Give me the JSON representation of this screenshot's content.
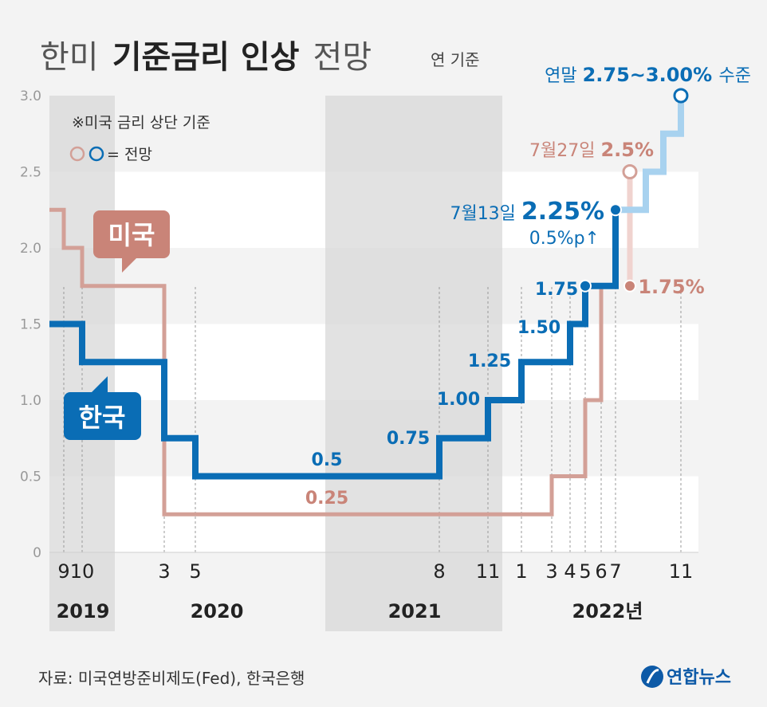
{
  "title": {
    "light1": "한미",
    "bold": "기준금리 인상",
    "light2": "전망"
  },
  "unit_note": "연 기준",
  "note": "※미국 금리 상단 기준",
  "legend_suffix": "= 전망",
  "source": "자료: 미국연방준비제도(Fed), 한국은행",
  "logo_text": "연합뉴스",
  "colors": {
    "korea": "#0a6db5",
    "korea_forecast": "#a8d2ef",
    "us": "#d3a097",
    "us_forecast": "#f0d3cf",
    "us_label": "#c98478"
  },
  "chart_data": {
    "type": "line",
    "step": true,
    "ylim": [
      0,
      3.0
    ],
    "yticks": [
      "0",
      "0.5",
      "1.0",
      "1.5",
      "2.0",
      "2.5",
      "3.0"
    ],
    "xlim": [
      "2019-08",
      "2022-12"
    ],
    "month_ticks": [
      {
        "label": "9",
        "x": "2019-09"
      },
      {
        "label": "10",
        "x": "2019-10"
      },
      {
        "label": "3",
        "x": "2020-03"
      },
      {
        "label": "5",
        "x": "2020-05"
      },
      {
        "label": "8",
        "x": "2021-08"
      },
      {
        "label": "11",
        "x": "2021-11"
      },
      {
        "label": "1",
        "x": "2022-01"
      },
      {
        "label": "3",
        "x": "2022-03"
      },
      {
        "label": "4",
        "x": "2022-04"
      },
      {
        "label": "5",
        "x": "2022-05"
      },
      {
        "label": "6",
        "x": "2022-06"
      },
      {
        "label": "7",
        "x": "2022-07"
      },
      {
        "label": "11",
        "x": "2022-11"
      }
    ],
    "years": [
      {
        "label": "2019",
        "x": "2019-10"
      },
      {
        "label": "2020",
        "x": "2020-04"
      },
      {
        "label": "2021",
        "x": "2021-08"
      },
      {
        "label": "2022년",
        "x": "2022-06"
      }
    ],
    "series": [
      {
        "name": "미국",
        "points": [
          [
            "2019-08",
            2.25
          ],
          [
            "2019-09",
            2.0
          ],
          [
            "2019-10",
            1.75
          ],
          [
            "2020-03",
            0.25
          ],
          [
            "2022-03",
            0.5
          ],
          [
            "2022-05",
            1.0
          ],
          [
            "2022-06",
            1.75
          ]
        ],
        "forecast": [
          [
            "2022-07",
            2.5
          ]
        ]
      },
      {
        "name": "한국",
        "points": [
          [
            "2019-08",
            1.5
          ],
          [
            "2019-10",
            1.25
          ],
          [
            "2020-03",
            0.75
          ],
          [
            "2020-05",
            0.5
          ],
          [
            "2021-08",
            0.75
          ],
          [
            "2021-11",
            1.0
          ],
          [
            "2022-01",
            1.25
          ],
          [
            "2022-04",
            1.5
          ],
          [
            "2022-05",
            1.75
          ],
          [
            "2022-07",
            2.25
          ]
        ],
        "forecast": [
          [
            "2022-08",
            2.5
          ],
          [
            "2022-10",
            2.75
          ],
          [
            "2022-11",
            3.0
          ]
        ]
      }
    ],
    "value_labels": [
      {
        "text": "0.5",
        "series": "한국"
      },
      {
        "text": "0.75",
        "series": "한국"
      },
      {
        "text": "1.00",
        "series": "한국"
      },
      {
        "text": "1.25",
        "series": "한국"
      },
      {
        "text": "1.50",
        "series": "한국"
      },
      {
        "text": "1.75",
        "series": "한국"
      },
      {
        "text": "0.25",
        "series": "미국"
      },
      {
        "text": "1.75%",
        "series": "미국"
      }
    ],
    "annotations": {
      "korea_july": {
        "date": "7월13일",
        "value": "2.25%",
        "sub": "0.5%p↑"
      },
      "us_july": {
        "date": "7월27일",
        "value": "2.5%"
      },
      "year_end": {
        "prefix": "연말",
        "value": "2.75~3.00%",
        "suffix": "수준"
      }
    }
  }
}
